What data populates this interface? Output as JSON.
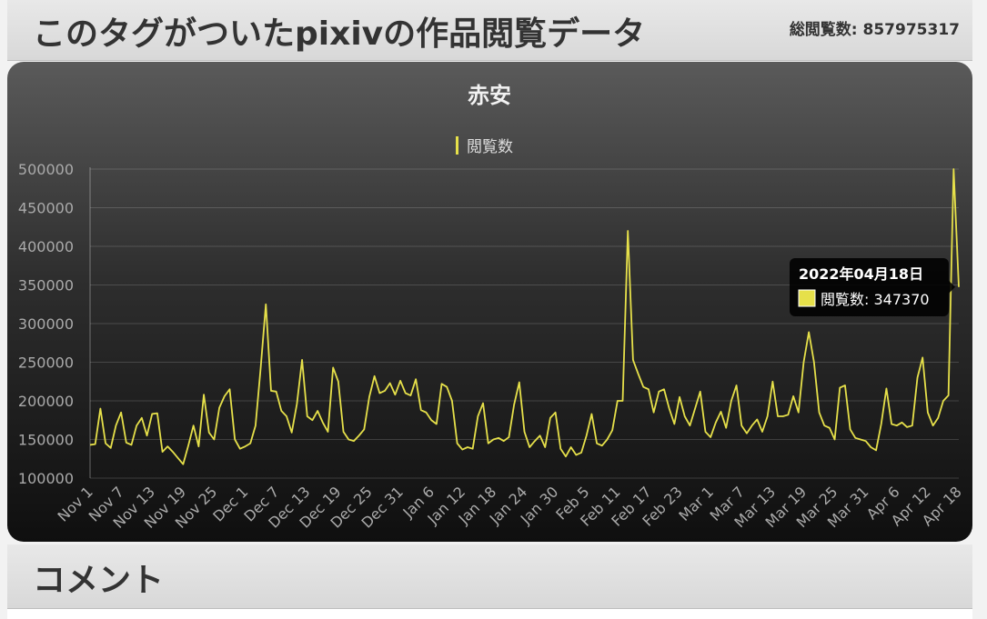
{
  "header": {
    "title": "このタグがついたpixivの作品閲覧データ",
    "total_views": "総閲覧数: 857975317"
  },
  "comments": {
    "title": "コメント"
  },
  "tooltip": {
    "date": "2022年04月18日",
    "label": "閲覧数: 347370"
  },
  "colors": {
    "series": "#e6e04a",
    "tooltip_bg": "#000000",
    "text": "#dddddd"
  },
  "chart_data": {
    "type": "line",
    "title": "赤安",
    "legend_position": "top",
    "grid": true,
    "series": [
      {
        "name": "閲覧数",
        "values": [
          143000,
          144000,
          190000,
          145000,
          139000,
          168000,
          185000,
          146000,
          143000,
          168000,
          178000,
          155000,
          183000,
          184000,
          134000,
          141000,
          134000,
          126000,
          118000,
          142000,
          168000,
          141000,
          208000,
          159000,
          150000,
          191000,
          206000,
          215000,
          150000,
          138000,
          141000,
          145000,
          168000,
          243000,
          325000,
          213000,
          212000,
          187000,
          180000,
          159000,
          196000,
          253000,
          180000,
          175000,
          187000,
          172000,
          160000,
          243000,
          225000,
          160000,
          150000,
          148000,
          155000,
          163000,
          205000,
          232000,
          210000,
          213000,
          223000,
          208000,
          226000,
          210000,
          207000,
          228000,
          188000,
          185000,
          175000,
          170000,
          222000,
          218000,
          200000,
          145000,
          137000,
          140000,
          138000,
          180000,
          197000,
          145000,
          150000,
          152000,
          148000,
          153000,
          195000,
          224000,
          160000,
          140000,
          148000,
          155000,
          140000,
          178000,
          185000,
          138000,
          128000,
          140000,
          130000,
          133000,
          155000,
          183000,
          145000,
          142000,
          150000,
          162000,
          200000,
          200000,
          420000,
          253000,
          235000,
          218000,
          215000,
          185000,
          212000,
          215000,
          190000,
          170000,
          205000,
          180000,
          168000,
          190000,
          212000,
          160000,
          153000,
          172000,
          186000,
          165000,
          200000,
          220000,
          168000,
          158000,
          168000,
          176000,
          160000,
          180000,
          225000,
          180000,
          180000,
          182000,
          206000,
          185000,
          250000,
          289000,
          250000,
          185000,
          168000,
          165000,
          150000,
          217000,
          220000,
          163000,
          152000,
          150000,
          148000,
          140000,
          136000,
          170000,
          216000,
          170000,
          168000,
          172000,
          166000,
          168000,
          230000,
          256000,
          185000,
          168000,
          178000,
          200000,
          207000,
          500000,
          347370
        ]
      }
    ],
    "x_tick_labels": [
      "Nov 1",
      "Nov 7",
      "Nov 13",
      "Nov 19",
      "Nov 25",
      "Dec 1",
      "Dec 7",
      "Dec 13",
      "Dec 19",
      "Dec 25",
      "Dec 31",
      "Jan 6",
      "Jan 12",
      "Jan 18",
      "Jan 24",
      "Jan 30",
      "Feb 5",
      "Feb 11",
      "Feb 17",
      "Feb 23",
      "Mar 1",
      "Mar 7",
      "Mar 13",
      "Mar 19",
      "Mar 25",
      "Mar 31",
      "Apr 6",
      "Apr 12",
      "Apr 18"
    ],
    "x_tick_every": 6,
    "y_ticks": [
      100000,
      150000,
      200000,
      250000,
      300000,
      350000,
      400000,
      450000,
      500000
    ],
    "ylim": [
      100000,
      500000
    ]
  }
}
